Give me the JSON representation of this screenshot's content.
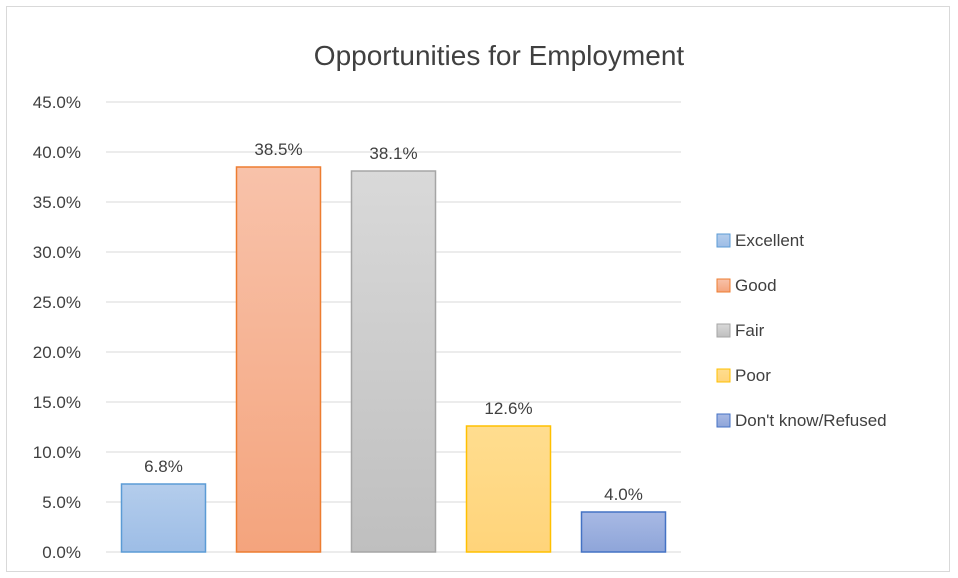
{
  "chart_data": {
    "type": "bar",
    "title": "Opportunities for Employment",
    "categories": [
      "Excellent",
      "Good",
      "Fair",
      "Poor",
      "Don't know/Refused"
    ],
    "values": [
      6.8,
      38.5,
      38.1,
      12.6,
      4.0
    ],
    "value_labels": [
      "6.8%",
      "38.5%",
      "38.1%",
      "12.6%",
      "4.0%"
    ],
    "ylim": [
      0,
      45
    ],
    "yticks": [
      0,
      5,
      10,
      15,
      20,
      25,
      30,
      35,
      40,
      45
    ],
    "ytick_labels": [
      "0.0%",
      "5.0%",
      "10.0%",
      "15.0%",
      "20.0%",
      "25.0%",
      "30.0%",
      "35.0%",
      "40.0%",
      "45.0%"
    ],
    "xlabel": "",
    "ylabel": "",
    "grid": true,
    "legend_position": "right",
    "colors": [
      {
        "fill_top": "#b4cdec",
        "fill_bottom": "#9dbde6",
        "stroke": "#5b9bd5"
      },
      {
        "fill_top": "#f8c2aa",
        "fill_bottom": "#f4a47d",
        "stroke": "#ed7d31"
      },
      {
        "fill_top": "#d9d9d9",
        "fill_bottom": "#bfbfbf",
        "stroke": "#a5a5a5"
      },
      {
        "fill_top": "#ffdd8f",
        "fill_bottom": "#ffd47a",
        "stroke": "#ffc000"
      },
      {
        "fill_top": "#a8b9e4",
        "fill_bottom": "#8ea5d9",
        "stroke": "#4472c4"
      }
    ]
  }
}
